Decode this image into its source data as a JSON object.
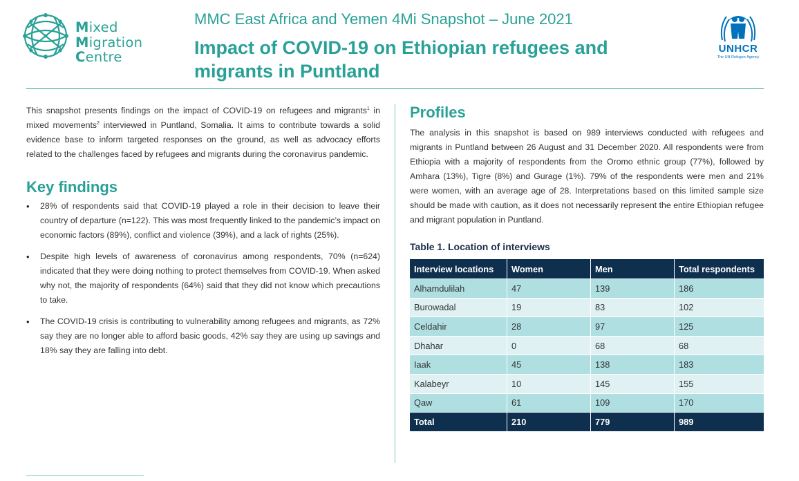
{
  "header": {
    "logo": {
      "line1": "Mixed",
      "line2": "Migration",
      "line3": "Centre"
    },
    "supertitle": "MMC East Africa and Yemen 4Mi Snapshot – June 2021",
    "title": "Impact of COVID-19 on Ethiopian refugees and migrants in Puntland",
    "unhcr": {
      "name": "UNHCR",
      "tagline": "The UN Refugee Agency"
    }
  },
  "intro": {
    "part1": "This snapshot presents findings on the impact of COVID-19 on refugees and migrants",
    "sup1": "1",
    "part2": " in mixed movements",
    "sup2": "2",
    "part3": " interviewed in Puntland, Somalia. It aims to contribute towards a solid evidence base to inform targeted responses on the ground, as well as advocacy efforts related to the challenges faced by refugees and migrants during the coronavirus pandemic."
  },
  "key_findings": {
    "heading": "Key findings",
    "items": [
      "28% of respondents said that COVID-19 played a role in their decision to leave their country of departure (n=122). This was most frequently linked to the pandemic’s impact on economic factors (89%), conflict and violence (39%), and a lack of rights (25%).",
      "Despite high levels of awareness of coronavirus among respondents, 70% (n=624) indicated that they were doing nothing to protect themselves from COVID-19. When asked why not, the majority of respondents (64%) said that they did not know which precautions to take.",
      "The COVID-19 crisis is contributing to vulnerability among refugees and migrants, as 72% say they are no longer able to afford basic goods, 42% say they are using up savings and 18% say they are falling into debt."
    ]
  },
  "profiles": {
    "heading": "Profiles",
    "text": "The analysis in this snapshot is based on 989 interviews conducted with refugees and migrants in Puntland between 26 August and 31 December 2020. All respondents were from Ethiopia with a majority of respondents from the Oromo ethnic group (77%), followed by Amhara (13%), Tigre (8%) and Gurage (1%). 79% of the respondents were men and 21% were women, with an average age of 28. Interpretations based on this limited sample size should be made with caution, as it does not necessarily represent the entire Ethiopian refugee and migrant population in Puntland."
  },
  "table": {
    "title": "Table 1. Location of interviews",
    "headers": [
      "Interview locations",
      "Women",
      "Men",
      "Total respondents"
    ],
    "rows": [
      [
        "Alhamdulilah",
        "47",
        "139",
        "186"
      ],
      [
        "Burowadal",
        "19",
        "83",
        "102"
      ],
      [
        "Celdahir",
        "28",
        "97",
        "125"
      ],
      [
        "Dhahar",
        "0",
        "68",
        "68"
      ],
      [
        "Iaak",
        "45",
        "138",
        "183"
      ],
      [
        "Kalabeyr",
        "10",
        "145",
        "155"
      ],
      [
        "Qaw",
        "61",
        "109",
        "170"
      ]
    ],
    "total": [
      "Total",
      "210",
      "779",
      "989"
    ]
  },
  "colors": {
    "brand_teal": "#2aa197",
    "table_navy": "#0e2f4d",
    "row_dark": "#b0dfe2",
    "row_light": "#dff1f2",
    "unhcr_blue": "#0072bc"
  }
}
